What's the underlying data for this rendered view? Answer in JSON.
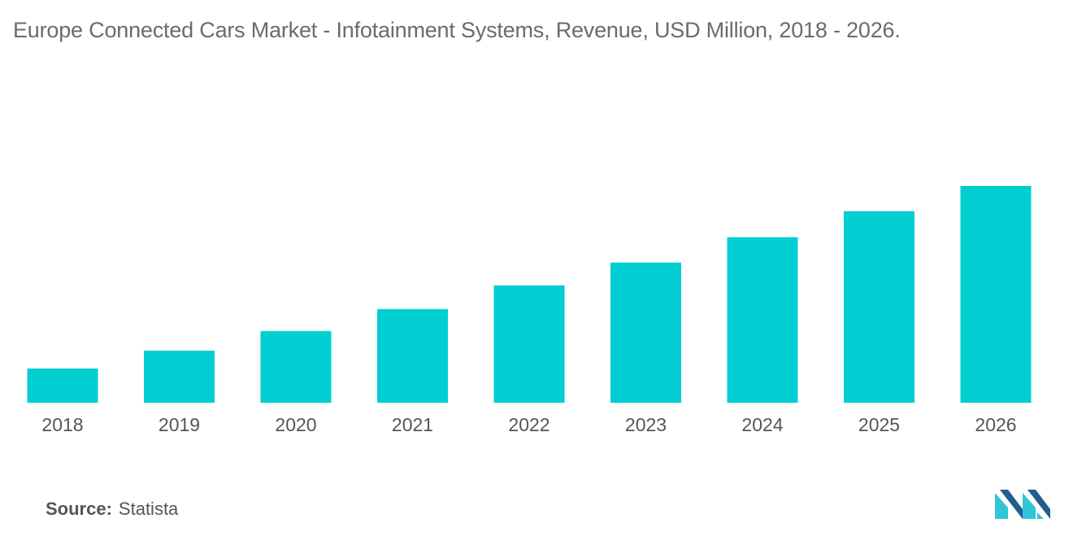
{
  "title": "Europe Connected Cars Market - Infotainment Systems, Revenue, USD Million, 2018 - 2026.",
  "source": {
    "label": "Source:",
    "value": "Statista"
  },
  "logo_icon": "mordor-intelligence-logo-icon",
  "colors": {
    "bar": "#00CED1",
    "logo_dark": "#1f5f8b",
    "logo_light": "#30c6d8"
  },
  "chart_data": {
    "type": "bar",
    "categories": [
      "2018",
      "2019",
      "2020",
      "2021",
      "2022",
      "2023",
      "2024",
      "2025",
      "2026"
    ],
    "values": [
      42,
      64,
      88,
      115,
      144,
      172,
      203,
      235,
      266
    ],
    "title": "Europe Connected Cars Market - Infotainment Systems, Revenue, USD Million, 2018 - 2026.",
    "xlabel": "",
    "ylabel": "",
    "ylim": [
      0,
      266
    ],
    "grid": false,
    "legend": "none"
  }
}
